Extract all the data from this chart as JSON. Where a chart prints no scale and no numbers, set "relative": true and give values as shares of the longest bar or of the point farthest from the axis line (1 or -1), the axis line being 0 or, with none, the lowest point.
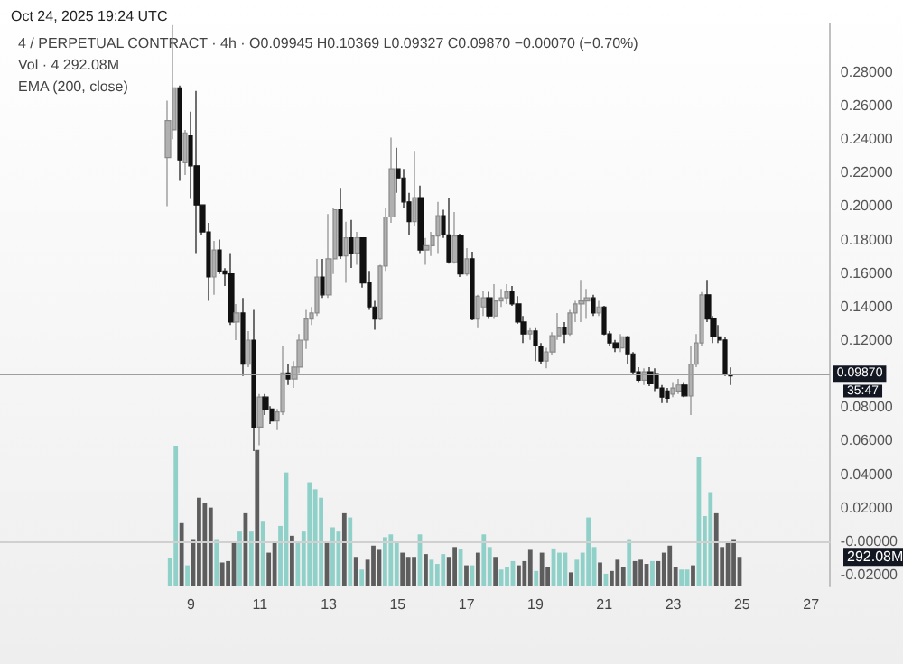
{
  "chart_data": [
    {
      "type": "candlestick",
      "annotations": [
        "Oct 24, 2025 19:24 UTC",
        "4 / PERPETUAL CONTRACT · 4h · O0.09945 H0.10369 L0.09327 C0.09870 −0.00070 (−0.70%)",
        "Vol · 4 292.08M",
        "EMA (200, close)",
        "35:47"
      ],
      "x": [
        "2025-10-08T08:00",
        "2025-10-08T12:00",
        "2025-10-08T16:00",
        "2025-10-08T20:00",
        "2025-10-09T00:00",
        "2025-10-09T04:00",
        "2025-10-09T08:00",
        "2025-10-09T12:00",
        "2025-10-09T16:00",
        "2025-10-09T20:00",
        "2025-10-10T00:00",
        "2025-10-10T04:00",
        "2025-10-10T08:00",
        "2025-10-10T12:00",
        "2025-10-10T16:00",
        "2025-10-10T20:00",
        "2025-10-11T00:00",
        "2025-10-11T04:00",
        "2025-10-11T08:00",
        "2025-10-11T12:00",
        "2025-10-11T16:00",
        "2025-10-11T20:00",
        "2025-10-12T00:00",
        "2025-10-12T04:00",
        "2025-10-12T08:00",
        "2025-10-12T12:00",
        "2025-10-12T16:00",
        "2025-10-12T20:00",
        "2025-10-13T00:00",
        "2025-10-13T04:00",
        "2025-10-13T08:00",
        "2025-10-13T12:00",
        "2025-10-13T16:00",
        "2025-10-13T20:00",
        "2025-10-14T00:00",
        "2025-10-14T04:00",
        "2025-10-14T08:00",
        "2025-10-14T12:00",
        "2025-10-14T16:00",
        "2025-10-14T20:00",
        "2025-10-15T00:00",
        "2025-10-15T04:00",
        "2025-10-15T08:00",
        "2025-10-15T12:00",
        "2025-10-15T16:00",
        "2025-10-15T20:00",
        "2025-10-16T00:00",
        "2025-10-16T04:00",
        "2025-10-16T08:00",
        "2025-10-16T12:00",
        "2025-10-16T16:00",
        "2025-10-16T20:00",
        "2025-10-17T00:00",
        "2025-10-17T04:00",
        "2025-10-17T08:00",
        "2025-10-17T12:00",
        "2025-10-17T16:00",
        "2025-10-17T20:00",
        "2025-10-18T00:00",
        "2025-10-18T04:00",
        "2025-10-18T08:00",
        "2025-10-18T12:00",
        "2025-10-18T16:00",
        "2025-10-18T20:00",
        "2025-10-19T00:00",
        "2025-10-19T04:00",
        "2025-10-19T08:00",
        "2025-10-19T12:00",
        "2025-10-19T16:00",
        "2025-10-19T20:00",
        "2025-10-20T00:00",
        "2025-10-20T04:00",
        "2025-10-20T08:00",
        "2025-10-20T12:00",
        "2025-10-20T16:00",
        "2025-10-20T20:00",
        "2025-10-21T00:00",
        "2025-10-21T04:00",
        "2025-10-21T08:00",
        "2025-10-21T12:00",
        "2025-10-21T16:00",
        "2025-10-21T20:00",
        "2025-10-22T00:00",
        "2025-10-22T04:00",
        "2025-10-22T08:00",
        "2025-10-22T12:00",
        "2025-10-22T16:00",
        "2025-10-22T20:00",
        "2025-10-23T00:00",
        "2025-10-23T04:00",
        "2025-10-23T08:00",
        "2025-10-23T12:00",
        "2025-10-23T16:00",
        "2025-10-23T20:00",
        "2025-10-24T00:00",
        "2025-10-24T04:00",
        "2025-10-24T08:00",
        "2025-10-24T12:00",
        "2025-10-24T16:00"
      ],
      "ohlc": [
        [
          0.229,
          0.263,
          0.2,
          0.251
        ],
        [
          0.2455,
          0.308,
          0.24,
          0.2706
        ],
        [
          0.2706,
          0.272,
          0.215,
          0.2276
        ],
        [
          0.2258,
          0.2455,
          0.2186,
          0.2437
        ],
        [
          0.2419,
          0.2563,
          0.2043,
          0.224
        ],
        [
          0.224,
          0.2688,
          0.172,
          0.2007
        ],
        [
          0.2007,
          0.2007,
          0.1828,
          0.1846
        ],
        [
          0.1846,
          0.19,
          0.1434,
          0.1577
        ],
        [
          0.1577,
          0.1792,
          0.147,
          0.1738
        ],
        [
          0.1738,
          0.18,
          0.1595,
          0.1613
        ],
        [
          0.1613,
          0.163,
          0.1523,
          0.1595
        ],
        [
          0.1595,
          0.172,
          0.129,
          0.1308
        ],
        [
          0.1308,
          0.1416,
          0.12,
          0.1362
        ],
        [
          0.1362,
          0.1452,
          0.0986,
          0.1057
        ],
        [
          0.1057,
          0.1254,
          0.1039,
          0.12
        ],
        [
          0.12,
          0.138,
          0.0538,
          0.0681
        ],
        [
          0.0681,
          0.0878,
          0.0573,
          0.086
        ],
        [
          0.086,
          0.0878,
          0.0753,
          0.0789
        ],
        [
          0.0789,
          0.0806,
          0.0699,
          0.0717
        ],
        [
          0.0717,
          0.0789,
          0.0663,
          0.0771
        ],
        [
          0.0771,
          0.1165,
          0.0753,
          0.1004
        ],
        [
          0.1004,
          0.1057,
          0.0932,
          0.0968
        ],
        [
          0.0968,
          0.1075,
          0.0914,
          0.1039
        ],
        [
          0.1039,
          0.1237,
          0.1004,
          0.12
        ],
        [
          0.12,
          0.138,
          0.1147,
          0.1326
        ],
        [
          0.1326,
          0.1398,
          0.129,
          0.1362
        ],
        [
          0.1362,
          0.1685,
          0.1344,
          0.1577
        ],
        [
          0.1577,
          0.1685,
          0.1452,
          0.147
        ],
        [
          0.147,
          0.1953,
          0.1452,
          0.1685
        ],
        [
          0.1685,
          0.1989,
          0.1595,
          0.1978
        ],
        [
          0.1978,
          0.2108,
          0.1685,
          0.1703
        ],
        [
          0.1703,
          0.1907,
          0.1542,
          0.181
        ],
        [
          0.181,
          0.1918,
          0.1631,
          0.172
        ],
        [
          0.172,
          0.1846,
          0.1649,
          0.181
        ],
        [
          0.181,
          0.181,
          0.1513,
          0.1541
        ],
        [
          0.1541,
          0.1613,
          0.138,
          0.1398
        ],
        [
          0.1398,
          0.1434,
          0.1262,
          0.1326
        ],
        [
          0.1326,
          0.1649,
          0.1319,
          0.1642
        ],
        [
          0.1642,
          0.1989,
          0.1613,
          0.1935
        ],
        [
          0.1935,
          0.2409,
          0.19,
          0.2222
        ],
        [
          0.2222,
          0.2348,
          0.2079,
          0.2168
        ],
        [
          0.2168,
          0.2222,
          0.1989,
          0.2025
        ],
        [
          0.2025,
          0.2079,
          0.1828,
          0.1907
        ],
        [
          0.1907,
          0.233,
          0.1882,
          0.205
        ],
        [
          0.205,
          0.2122,
          0.172,
          0.1738
        ],
        [
          0.1738,
          0.181,
          0.1649,
          0.1763
        ],
        [
          0.1763,
          0.1846,
          0.1702,
          0.1821
        ],
        [
          0.1821,
          0.2025,
          0.172,
          0.1943
        ],
        [
          0.1943,
          0.1978,
          0.181,
          0.1828
        ],
        [
          0.1828,
          0.205,
          0.1656,
          0.1667
        ],
        [
          0.1667,
          0.1964,
          0.1656,
          0.1821
        ],
        [
          0.1821,
          0.1835,
          0.1577,
          0.1595
        ],
        [
          0.1595,
          0.1749,
          0.1584,
          0.1685
        ],
        [
          0.1685,
          0.1728,
          0.1319,
          0.1326
        ],
        [
          0.1326,
          0.147,
          0.1272,
          0.1462
        ],
        [
          0.1398,
          0.1495,
          0.1344,
          0.1452
        ],
        [
          0.1452,
          0.1488,
          0.1326,
          0.1344
        ],
        [
          0.1344,
          0.1534,
          0.1326,
          0.1434
        ],
        [
          0.1434,
          0.1505,
          0.1398,
          0.1452
        ],
        [
          0.1452,
          0.1534,
          0.1416,
          0.1487
        ],
        [
          0.1487,
          0.1523,
          0.1405,
          0.1416
        ],
        [
          0.1416,
          0.1462,
          0.1297,
          0.1308
        ],
        [
          0.1308,
          0.1344,
          0.1183,
          0.1237
        ],
        [
          0.1237,
          0.1272,
          0.1201,
          0.1254
        ],
        [
          0.1254,
          0.1272,
          0.1075,
          0.1165
        ],
        [
          0.1165,
          0.1183,
          0.1057,
          0.1075
        ],
        [
          0.1075,
          0.1154,
          0.1032,
          0.1129
        ],
        [
          0.1129,
          0.1247,
          0.1111,
          0.1226
        ],
        [
          0.1226,
          0.1362,
          0.1201,
          0.1272
        ],
        [
          0.1272,
          0.1308,
          0.1183,
          0.1237
        ],
        [
          0.1237,
          0.138,
          0.1226,
          0.1362
        ],
        [
          0.1362,
          0.1434,
          0.1308,
          0.1416
        ],
        [
          0.1416,
          0.1559,
          0.1308,
          0.1434
        ],
        [
          0.1434,
          0.1505,
          0.1326,
          0.1452
        ],
        [
          0.1452,
          0.147,
          0.1344,
          0.1362
        ],
        [
          0.1362,
          0.1434,
          0.1344,
          0.1398
        ],
        [
          0.1398,
          0.1405,
          0.1229,
          0.1237
        ],
        [
          0.1237,
          0.1254,
          0.1165,
          0.1183
        ],
        [
          0.1183,
          0.1201,
          0.1129,
          0.1154
        ],
        [
          0.1154,
          0.1237,
          0.1129,
          0.1219
        ],
        [
          0.1219,
          0.1226,
          0.1057,
          0.1118
        ],
        [
          0.1118,
          0.1129,
          0.0996,
          0.1011
        ],
        [
          0.1011,
          0.1039,
          0.095,
          0.0961
        ],
        [
          0.0961,
          0.1032,
          0.0932,
          0.1011
        ],
        [
          0.1011,
          0.1039,
          0.0925,
          0.0939
        ],
        [
          0.1,
          0.1032,
          0.0896,
          0.0914
        ],
        [
          0.0914,
          0.0932,
          0.0824,
          0.086
        ],
        [
          0.0896,
          0.0914,
          0.0824,
          0.0853
        ],
        [
          0.0878,
          0.095,
          0.086,
          0.0914
        ],
        [
          0.0896,
          0.0968,
          0.0878,
          0.0932
        ],
        [
          0.0932,
          0.095,
          0.086,
          0.0867
        ],
        [
          0.0867,
          0.1165,
          0.0753,
          0.1057
        ],
        [
          0.1057,
          0.1237,
          0.1039,
          0.1183
        ],
        [
          0.1183,
          0.1487,
          0.1165,
          0.147
        ],
        [
          0.147,
          0.1559,
          0.1308,
          0.1326
        ],
        [
          0.1326,
          0.1344,
          0.1183,
          0.1219
        ],
        [
          0.1219,
          0.129,
          0.1183,
          0.1201
        ],
        [
          0.1201,
          0.1219,
          0.0986,
          0.1004
        ],
        [
          0.09945,
          0.10369,
          0.09327,
          0.0987
        ]
      ],
      "xlim": [
        "2025-10-03T11:00",
        "2025-10-27T13:00"
      ],
      "xticks": [
        {
          "value": "2025-10-09",
          "label": "9"
        },
        {
          "value": "2025-10-11",
          "label": "11"
        },
        {
          "value": "2025-10-13",
          "label": "13"
        },
        {
          "value": "2025-10-15",
          "label": "15"
        },
        {
          "value": "2025-10-17",
          "label": "17"
        },
        {
          "value": "2025-10-19",
          "label": "19"
        },
        {
          "value": "2025-10-21",
          "label": "21"
        },
        {
          "value": "2025-10-23",
          "label": "23"
        },
        {
          "value": "2025-10-25",
          "label": "25"
        },
        {
          "value": "2025-10-27",
          "label": "27"
        }
      ],
      "ylim": [
        -0.027,
        0.309
      ],
      "yticks": [
        {
          "value": -0.02,
          "label": "-0.02000"
        },
        {
          "value": 0,
          "label": "-0.00000"
        },
        {
          "value": 0.02,
          "label": "0.02000"
        },
        {
          "value": 0.04,
          "label": "0.04000"
        },
        {
          "value": 0.06,
          "label": "0.06000"
        },
        {
          "value": 0.08,
          "label": "0.08000"
        },
        {
          "value": 0.12,
          "label": "0.12000"
        },
        {
          "value": 0.14,
          "label": "0.14000"
        },
        {
          "value": 0.16,
          "label": "0.16000"
        },
        {
          "value": 0.18,
          "label": "0.18000"
        },
        {
          "value": 0.2,
          "label": "0.20000"
        },
        {
          "value": 0.22,
          "label": "0.22000"
        },
        {
          "value": 0.24,
          "label": "0.24000"
        },
        {
          "value": 0.26,
          "label": "0.26000"
        },
        {
          "value": 0.28,
          "label": "0.28000"
        }
      ],
      "ref_lines": [
        {
          "axis": "y",
          "value": 0.0987,
          "label": "0.09870",
          "color": "#9e9e9e"
        }
      ]
    },
    {
      "type": "bar",
      "relative": true,
      "tick_labels": false,
      "categories": [
        null,
        null,
        null,
        null,
        null,
        null,
        null,
        null,
        null,
        null,
        null,
        null,
        null,
        null,
        null,
        null,
        null,
        null,
        null,
        null,
        null,
        null,
        null,
        null,
        null,
        null,
        null,
        null,
        null,
        null,
        null,
        null,
        null,
        null,
        null,
        null,
        null,
        null,
        null,
        null,
        null,
        null,
        null,
        null,
        null,
        null,
        null,
        null,
        null,
        null,
        null,
        null,
        null,
        null,
        null,
        null,
        null,
        null,
        null,
        null,
        null,
        null,
        null,
        null,
        null,
        null,
        null,
        null,
        null,
        null,
        null,
        null,
        null,
        null,
        null,
        null,
        null,
        null,
        null,
        null,
        null,
        null,
        null,
        null,
        null,
        null,
        null,
        null,
        null,
        null,
        null,
        null,
        null,
        null,
        null,
        null,
        null,
        null,
        null
      ],
      "annotations": [
        "292.08M"
      ],
      "values": [
        0.2,
        1.0,
        0.45,
        0.15,
        0.33,
        0.63,
        0.59,
        0.56,
        0.33,
        0.17,
        0.18,
        0.32,
        0.39,
        0.52,
        0.39,
        0.97,
        0.46,
        0.24,
        0.32,
        0.43,
        0.81,
        0.36,
        0.31,
        0.39,
        0.74,
        0.69,
        0.63,
        0.31,
        0.42,
        0.39,
        0.52,
        0.49,
        0.21,
        0.12,
        0.19,
        0.29,
        0.26,
        0.35,
        0.37,
        0.31,
        0.24,
        0.21,
        0.21,
        0.37,
        0.23,
        0.19,
        0.16,
        0.23,
        0.21,
        0.28,
        0.27,
        0.15,
        0.15,
        0.24,
        0.37,
        0.28,
        0.21,
        0.12,
        0.14,
        0.18,
        0.15,
        0.18,
        0.26,
        0.11,
        0.24,
        0.14,
        0.27,
        0.24,
        0.24,
        0.1,
        0.19,
        0.24,
        0.49,
        0.28,
        0.17,
        0.09,
        0.11,
        0.19,
        0.14,
        0.33,
        0.18,
        0.19,
        0.16,
        0.18,
        0.18,
        0.24,
        0.29,
        0.14,
        0.12,
        0.12,
        0.15,
        0.92,
        0.5,
        0.67,
        0.52,
        0.28,
        0.31,
        0.33,
        0.21
      ],
      "colors": [
        "#8fd0c9",
        "#8fd0c9",
        "#5d5d5d",
        "#8fd0c9",
        "#5d5d5d",
        "#5d5d5d",
        "#5d5d5d",
        "#5d5d5d",
        "#8fd0c9",
        "#5d5d5d",
        "#5d5d5d",
        "#5d5d5d",
        "#8fd0c9",
        "#5d5d5d",
        "#8fd0c9",
        "#5d5d5d",
        "#8fd0c9",
        "#5d5d5d",
        "#5d5d5d",
        "#8fd0c9",
        "#8fd0c9",
        "#5d5d5d",
        "#8fd0c9",
        "#8fd0c9",
        "#8fd0c9",
        "#8fd0c9",
        "#8fd0c9",
        "#5d5d5d",
        "#8fd0c9",
        "#8fd0c9",
        "#5d5d5d",
        "#8fd0c9",
        "#5d5d5d",
        "#8fd0c9",
        "#5d5d5d",
        "#5d5d5d",
        "#5d5d5d",
        "#8fd0c9",
        "#8fd0c9",
        "#8fd0c9",
        "#5d5d5d",
        "#5d5d5d",
        "#5d5d5d",
        "#8fd0c9",
        "#5d5d5d",
        "#8fd0c9",
        "#8fd0c9",
        "#8fd0c9",
        "#5d5d5d",
        "#5d5d5d",
        "#8fd0c9",
        "#5d5d5d",
        "#8fd0c9",
        "#5d5d5d",
        "#8fd0c9",
        "#8fd0c9",
        "#5d5d5d",
        "#8fd0c9",
        "#8fd0c9",
        "#8fd0c9",
        "#5d5d5d",
        "#5d5d5d",
        "#5d5d5d",
        "#8fd0c9",
        "#5d5d5d",
        "#5d5d5d",
        "#8fd0c9",
        "#8fd0c9",
        "#8fd0c9",
        "#5d5d5d",
        "#8fd0c9",
        "#8fd0c9",
        "#8fd0c9",
        "#8fd0c9",
        "#5d5d5d",
        "#8fd0c9",
        "#5d5d5d",
        "#5d5d5d",
        "#5d5d5d",
        "#8fd0c9",
        "#5d5d5d",
        "#5d5d5d",
        "#5d5d5d",
        "#8fd0c9",
        "#5d5d5d",
        "#5d5d5d",
        "#5d5d5d",
        "#5d5d5d",
        "#8fd0c9",
        "#8fd0c9",
        "#5d5d5d",
        "#8fd0c9",
        "#8fd0c9",
        "#8fd0c9",
        "#5d5d5d",
        "#5d5d5d",
        "#5d5d5d",
        "#5d5d5d",
        "#5d5d5d"
      ]
    }
  ]
}
